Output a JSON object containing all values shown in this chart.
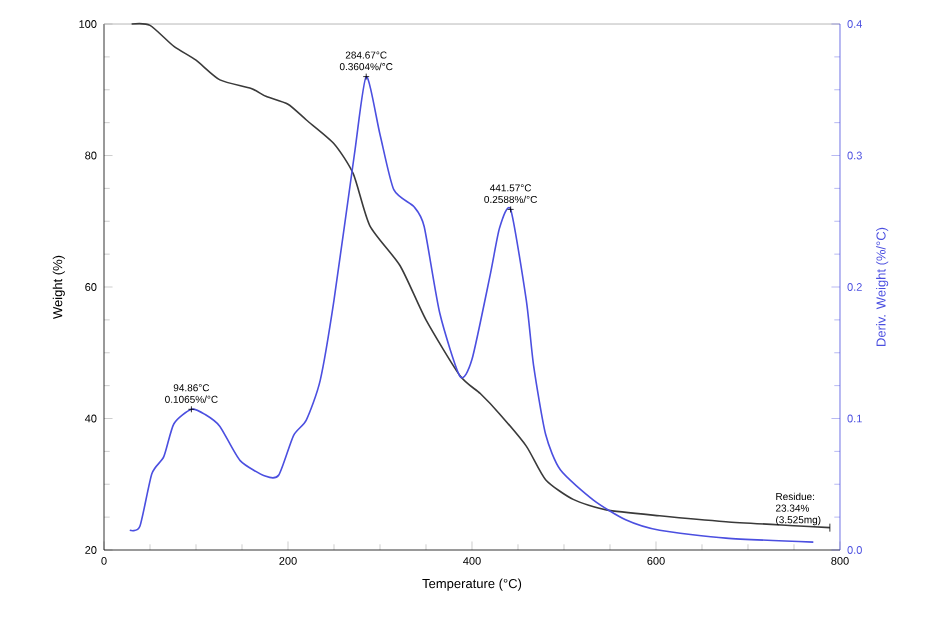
{
  "chart_data": {
    "type": "line",
    "xlabel": "Temperature (°C)",
    "ylabel": "Weight (%)",
    "y2label": "Deriv. Weight (%/°C)",
    "xlim": [
      0,
      800
    ],
    "xticks": [
      0,
      200,
      400,
      600,
      800
    ],
    "ylim": [
      20,
      100
    ],
    "yticks": [
      20,
      40,
      60,
      80,
      100
    ],
    "y2lim": [
      0,
      0.4
    ],
    "y2ticks": [
      {
        "value": 0,
        "label": "0.0"
      },
      0.1,
      0.2,
      0.3,
      0.4
    ],
    "marker": "none",
    "line_style": "solid",
    "series": [
      {
        "color": "#3a3a3a",
        "x": [
          30,
          50,
          76,
          100,
          126,
          160,
          176,
          200,
          220,
          250,
          271,
          289,
          322,
          350,
          387,
          409,
          430,
          459,
          480,
          510,
          546,
          604,
          676,
          750,
          789
        ],
        "values": [
          100,
          99.8,
          96.6,
          94.5,
          91.5,
          90.2,
          89,
          87.8,
          85.4,
          81.8,
          77.2,
          69.3,
          63.2,
          55,
          46.5,
          43.8,
          40.7,
          35.8,
          30.7,
          27.7,
          26.1,
          25.2,
          24.3,
          23.7,
          23.4
        ]
      },
      {
        "color": "#4b4fe0",
        "axis": "y2",
        "x": [
          28,
          39,
          52,
          65,
          76,
          95,
          110,
          126,
          148,
          176,
          190,
          206,
          220,
          235,
          250,
          272,
          285,
          300,
          315,
          337,
          348,
          365,
          387,
          400,
          420,
          430,
          442,
          459,
          467,
          480,
          496,
          532,
          567,
          604,
          676,
          771
        ],
        "values": [
          0.015,
          0.018,
          0.058,
          0.071,
          0.096,
          0.107,
          0.103,
          0.094,
          0.068,
          0.056,
          0.057,
          0.087,
          0.099,
          0.129,
          0.19,
          0.3,
          0.36,
          0.316,
          0.274,
          0.261,
          0.246,
          0.18,
          0.132,
          0.145,
          0.21,
          0.245,
          0.259,
          0.19,
          0.14,
          0.088,
          0.061,
          0.038,
          0.023,
          0.015,
          0.009,
          0.006
        ]
      }
    ],
    "annotations": [
      "94.86°C 0.1065%/°C",
      "284.67°C 0.3604%/°C",
      "441.57°C 0.2588%/°C",
      {
        "text": "Residue: 23.34% (3.525mg)",
        "x": 789,
        "y": 23.4
      }
    ]
  }
}
